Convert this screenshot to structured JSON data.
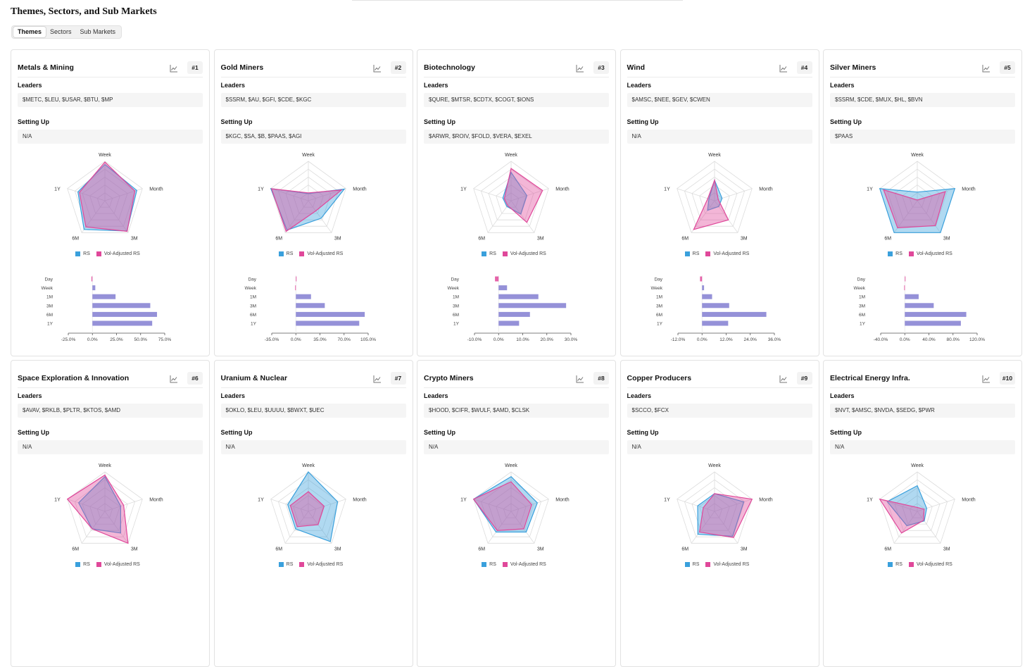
{
  "page": {
    "title": "Themes, Sectors, and Sub Markets",
    "tabs": [
      "Themes",
      "Sectors",
      "Sub Markets"
    ],
    "active_tab": "Themes"
  },
  "labels": {
    "leaders": "Leaders",
    "setting_up": "Setting Up",
    "legend_rs": "RS",
    "legend_vol": "Vol-Adjusted RS"
  },
  "colors": {
    "rs": "#3aa0dc",
    "vol": "#e0489a",
    "bar": "#8f8bd6"
  },
  "radar_axes": [
    "Week",
    "Month",
    "3M",
    "6M",
    "1Y"
  ],
  "bar_periods": [
    "Day",
    "Week",
    "1M",
    "3M",
    "6M",
    "1Y"
  ],
  "cards": [
    {
      "title": "Metals & Mining",
      "rank": "#1",
      "leaders": "$METC, $LEU, $USAR, $BTU, $MP",
      "setting_up": "N/A",
      "rs": [
        0.92,
        0.85,
        0.95,
        0.9,
        0.72
      ],
      "vol": [
        0.98,
        0.8,
        0.96,
        0.82,
        0.68
      ],
      "bars": {
        "values": [
          -1.0,
          3.0,
          24.0,
          60.0,
          67.0,
          62.0
        ],
        "ticks": [
          "-25.0%",
          "0.0%",
          "25.0%",
          "50.0%",
          "75.0%"
        ],
        "min": -25,
        "max": 75
      }
    },
    {
      "title": "Gold Miners",
      "rank": "#2",
      "leaders": "$SSRM, $AU, $GFI, $CDE, $KGC",
      "setting_up": "$KGC, $SA, $B, $PAAS, $AGI",
      "rs": [
        0.18,
        0.96,
        0.55,
        0.92,
        1.0
      ],
      "vol": [
        0.2,
        0.88,
        0.32,
        0.96,
        0.98
      ],
      "bars": {
        "values": [
          0.0,
          -1.0,
          22.0,
          42.0,
          100.0,
          92.0
        ],
        "ticks": [
          "-35.0%",
          "0.0%",
          "35.0%",
          "70.0%",
          "105.0%"
        ],
        "min": -35,
        "max": 105
      }
    },
    {
      "title": "Biotechnology",
      "rank": "#3",
      "leaders": "$QURE, $MTSR, $CDTX, $COGT, $IONS",
      "setting_up": "$ARWR, $ROIV, $FOLD, $VERA, $EXEL",
      "rs": [
        0.72,
        0.42,
        0.42,
        0.18,
        0.22
      ],
      "vol": [
        0.82,
        0.84,
        0.68,
        0.15,
        0.18
      ],
      "bars": {
        "values": [
          -1.5,
          3.5,
          16.5,
          28.0,
          13.0,
          8.5
        ],
        "ticks": [
          "-10.0%",
          "0.0%",
          "10.0%",
          "20.0%",
          "30.0%"
        ],
        "min": -10,
        "max": 30
      }
    },
    {
      "title": "Wind",
      "rank": "#4",
      "leaders": "$AMSC, $NEE, $GEV, $CWEN",
      "setting_up": "N/A",
      "rs": [
        0.52,
        0.2,
        0.18,
        0.3,
        0.15
      ],
      "vol": [
        0.52,
        0.1,
        0.6,
        0.9,
        0.18
      ],
      "bars": {
        "values": [
          -1.0,
          1.0,
          5.0,
          13.5,
          32.0,
          13.0
        ],
        "ticks": [
          "-12.0%",
          "0.0%",
          "12.0%",
          "24.0%",
          "36.0%"
        ],
        "min": -12,
        "max": 36
      }
    },
    {
      "title": "Silver Miners",
      "rank": "#5",
      "leaders": "$SSRM, $CDE, $MUX, $HL, $BVN",
      "setting_up": "$PAAS",
      "rs": [
        0.22,
        1.0,
        1.0,
        1.0,
        1.0
      ],
      "vol": [
        0.02,
        0.75,
        0.78,
        0.85,
        0.9
      ],
      "bars": {
        "values": [
          0.0,
          -1.0,
          23.0,
          48.0,
          102.0,
          93.0
        ],
        "ticks": [
          "-40.0%",
          "0.0%",
          "40.0%",
          "80.0%",
          "120.0%"
        ],
        "min": -40,
        "max": 120
      }
    },
    {
      "title": "Space Exploration & Innovation",
      "rank": "#6",
      "leaders": "$AVAV, $RKLB, $PLTR, $KTOS, $AMD",
      "setting_up": "N/A",
      "rs": [
        0.88,
        0.42,
        0.68,
        0.55,
        0.7
      ],
      "vol": [
        0.92,
        0.5,
        1.0,
        0.55,
        1.0
      ],
      "bars": null
    },
    {
      "title": "Uranium & Nuclear",
      "rank": "#7",
      "leaders": "$OKLO, $LEU, $UUUU, $BWXT, $UEC",
      "setting_up": "N/A",
      "rs": [
        1.0,
        0.78,
        0.95,
        0.55,
        0.55
      ],
      "vol": [
        0.5,
        0.42,
        0.42,
        0.48,
        0.48
      ],
      "bars": null
    },
    {
      "title": "Crypto Miners",
      "rank": "#8",
      "leaders": "$HOOD, $CIFR, $WULF, $AMD, $CLSK",
      "setting_up": "N/A",
      "rs": [
        0.88,
        0.7,
        0.65,
        0.65,
        1.0
      ],
      "vol": [
        0.75,
        0.55,
        0.55,
        0.6,
        1.0
      ],
      "bars": null
    },
    {
      "title": "Copper Producers",
      "rank": "#9",
      "leaders": "$SCCO, $FCX",
      "setting_up": "N/A",
      "rs": [
        0.45,
        0.78,
        0.78,
        0.72,
        0.45
      ],
      "vol": [
        0.45,
        1.0,
        0.82,
        0.65,
        0.3
      ],
      "bars": null
    },
    {
      "title": "Electrical Energy Infra.",
      "rank": "#10",
      "leaders": "$NVT, $AMSC, $NVDA, $SEDG, $PWR",
      "setting_up": "N/A",
      "rs": [
        0.65,
        0.25,
        0.3,
        0.45,
        0.8
      ],
      "vol": [
        0.1,
        0.18,
        0.28,
        0.68,
        1.0
      ],
      "bars": null
    }
  ]
}
